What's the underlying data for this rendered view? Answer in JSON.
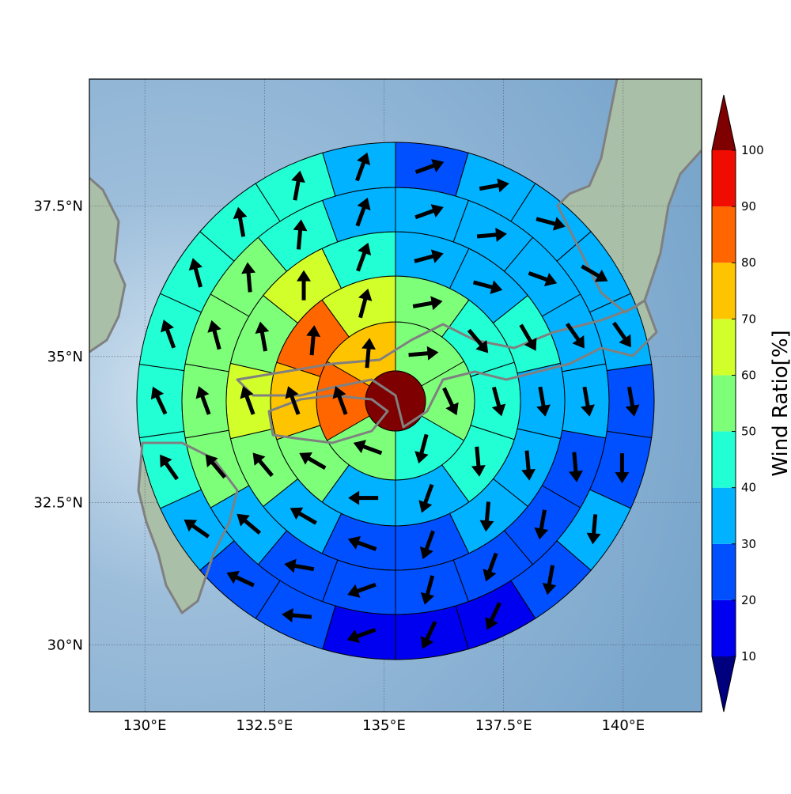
{
  "chart_data": {
    "type": "polar_sectors",
    "projection": "mercator",
    "xlim": [
      128.84,
      141.64
    ],
    "ylim": [
      28.8,
      39.54
    ],
    "grid": true,
    "xticks": [
      {
        "value": 130,
        "label": "130°E"
      },
      {
        "value": 132.5,
        "label": "132.5°E"
      },
      {
        "value": 135,
        "label": "135°E"
      },
      {
        "value": 137.5,
        "label": "137.5°E"
      },
      {
        "value": 140,
        "label": "140°E"
      }
    ],
    "yticks": [
      {
        "value": 30,
        "label": "30°N"
      },
      {
        "value": 32.5,
        "label": "32.5°N"
      },
      {
        "value": 35,
        "label": "35°N"
      },
      {
        "value": 37.5,
        "label": "37.5°N"
      }
    ],
    "center_value": 105,
    "rings": [
      {
        "values": [
          55,
          55,
          45,
          55,
          85,
          75
        ],
        "directions": [
          85,
          155,
          195,
          290,
          340,
          5
        ]
      },
      {
        "values": [
          55,
          45,
          45,
          45,
          35,
          35,
          55,
          75,
          85,
          65
        ],
        "directions": [
          80,
          140,
          165,
          175,
          200,
          270,
          300,
          340,
          5,
          15
        ]
      },
      {
        "values": [
          35,
          35,
          45,
          35,
          35,
          35,
          25,
          25,
          35,
          55,
          65,
          55,
          65,
          45
        ],
        "directions": [
          75,
          105,
          150,
          170,
          175,
          185,
          200,
          290,
          300,
          320,
          340,
          350,
          0,
          20
        ]
      },
      {
        "values": [
          35,
          35,
          35,
          35,
          35,
          25,
          25,
          25,
          25,
          25,
          25,
          35,
          55,
          55,
          55,
          55,
          45,
          35
        ],
        "directions": [
          70,
          85,
          110,
          145,
          170,
          175,
          190,
          200,
          195,
          250,
          280,
          310,
          320,
          340,
          345,
          355,
          5,
          20
        ]
      },
      {
        "values": [
          25,
          35,
          35,
          35,
          35,
          25,
          25,
          35,
          25,
          15,
          15,
          15,
          25,
          25,
          35,
          45,
          45,
          45,
          45,
          45,
          45,
          35
        ],
        "directions": [
          70,
          80,
          105,
          120,
          145,
          170,
          180,
          185,
          190,
          205,
          205,
          250,
          275,
          295,
          305,
          325,
          335,
          340,
          345,
          350,
          10,
          20
        ]
      }
    ],
    "colorbar": {
      "label": "Wind Ratio[%]",
      "ticks": [
        10,
        20,
        30,
        40,
        50,
        60,
        70,
        80,
        90,
        100
      ],
      "colors": [
        "#0000f0",
        "#0050ff",
        "#00b2ff",
        "#22ffd4",
        "#7dff7a",
        "#d2ff2a",
        "#ffc400",
        "#ff6600",
        "#f00c00"
      ],
      "under_color": "#00007f",
      "over_color": "#7f0000"
    }
  }
}
